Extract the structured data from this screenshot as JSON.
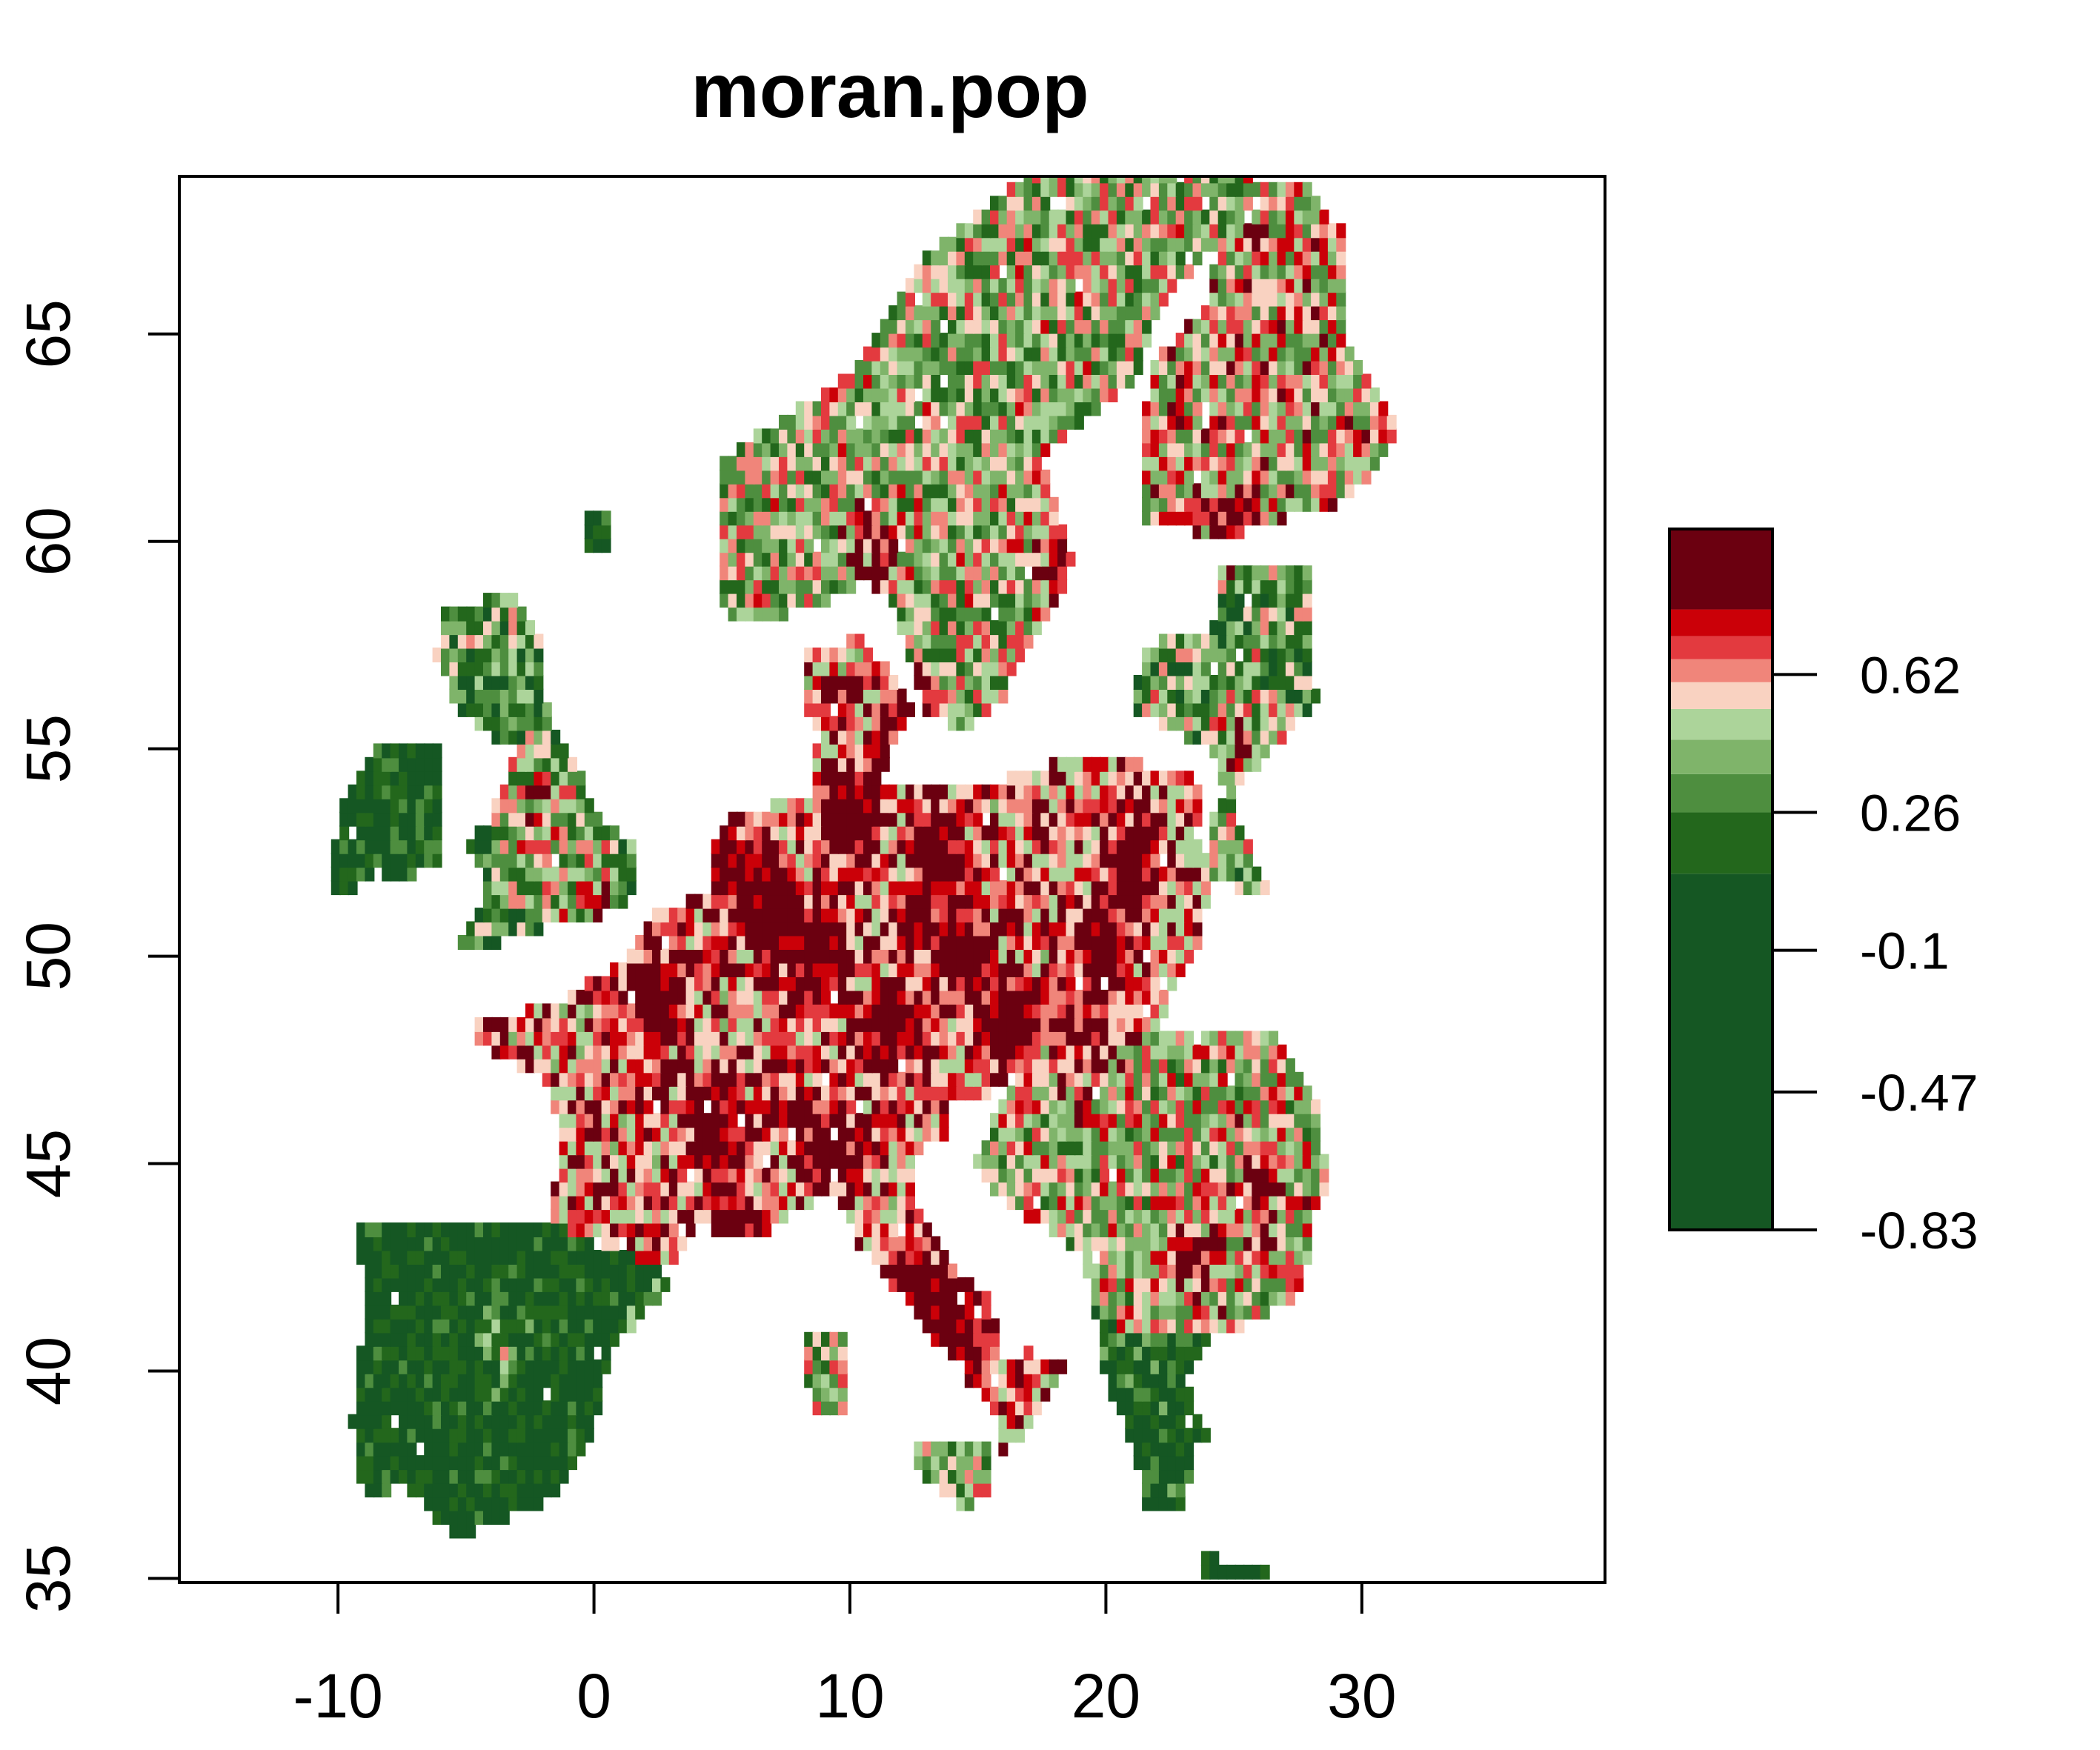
{
  "title": "moran.pop",
  "map": {
    "type": "raster",
    "region": "Europe",
    "x_axis": {
      "ticks": [
        -10,
        0,
        10,
        20,
        30
      ],
      "range": [
        -16.2,
        39.5
      ]
    },
    "y_axis": {
      "ticks": [
        35,
        40,
        45,
        50,
        55,
        60,
        65
      ],
      "range": [
        34.9,
        68.8
      ]
    },
    "legend": {
      "placement": "right",
      "tick_labels": [
        "0.62",
        "0.26",
        "-0.1",
        "-0.47",
        "-0.83"
      ],
      "tick_values": [
        0.62,
        0.26,
        -0.1,
        -0.47,
        -0.83
      ],
      "value_range": [
        -0.83,
        1.0
      ],
      "color_classes": [
        {
          "from": -0.83,
          "to": 0.1,
          "color": "#155723"
        },
        {
          "from": 0.1,
          "to": 0.26,
          "color": "#23671c"
        },
        {
          "from": 0.26,
          "to": 0.36,
          "color": "#4e8e3f"
        },
        {
          "from": 0.36,
          "to": 0.45,
          "color": "#7fb46a"
        },
        {
          "from": 0.45,
          "to": 0.53,
          "color": "#acd49a"
        },
        {
          "from": 0.53,
          "to": 0.6,
          "color": "#f9d2c1"
        },
        {
          "from": 0.6,
          "to": 0.66,
          "color": "#f0857a"
        },
        {
          "from": 0.66,
          "to": 0.72,
          "color": "#e33a3f"
        },
        {
          "from": 0.72,
          "to": 0.79,
          "color": "#cb0008"
        },
        {
          "from": 0.79,
          "to": 1.0,
          "color": "#6b0010"
        }
      ]
    }
  }
}
